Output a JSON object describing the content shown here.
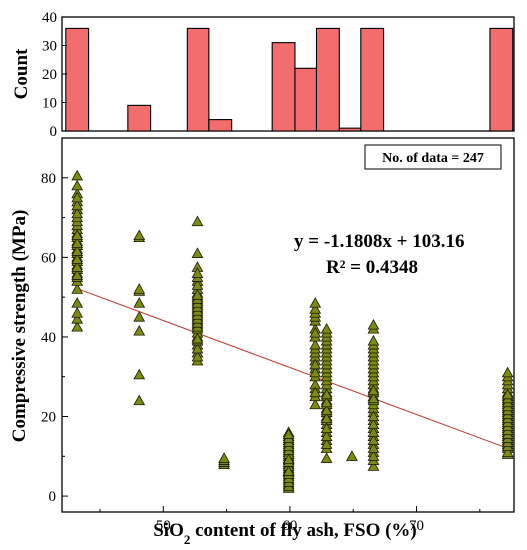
{
  "chart_data": [
    {
      "type": "bar",
      "panel": "top-histogram",
      "ylabel": "Count",
      "ylim": [
        0,
        40
      ],
      "yticks": [
        0,
        10,
        20,
        30,
        40
      ],
      "bins": [
        {
          "from": 42.3,
          "to": 44.1,
          "count": 36
        },
        {
          "from": 47.2,
          "to": 49.0,
          "count": 9
        },
        {
          "from": 51.9,
          "to": 53.6,
          "count": 36
        },
        {
          "from": 53.6,
          "to": 55.4,
          "count": 4
        },
        {
          "from": 58.6,
          "to": 60.4,
          "count": 31
        },
        {
          "from": 60.4,
          "to": 62.1,
          "count": 22
        },
        {
          "from": 62.1,
          "to": 63.9,
          "count": 36
        },
        {
          "from": 63.9,
          "to": 65.6,
          "count": 1
        },
        {
          "from": 65.6,
          "to": 67.4,
          "count": 36
        },
        {
          "from": 75.8,
          "to": 77.6,
          "count": 36
        }
      ],
      "bar_color": "#f26d6d"
    },
    {
      "type": "scatter",
      "panel": "main-scatter",
      "xlabel": "SiO₂ content of fly ash, FSO (%)",
      "xlabel_main": "SiO",
      "xlabel_sub": "2",
      "xlabel_rest": " content of fly ash, FSO (%)",
      "ylabel": "Compressive strength (MPa)",
      "xlim": [
        42,
        77.7
      ],
      "ylim": [
        -4,
        90
      ],
      "xticks": [
        50,
        60,
        70
      ],
      "yticks": [
        0,
        20,
        40,
        60,
        80
      ],
      "marker": "triangle",
      "marker_color": "#7a8a12",
      "data_count_label": "No. of data = 247",
      "equation": "y = -1.1808x + 103.16",
      "r_squared": "R² = 0.4348",
      "trendline": {
        "slope": -1.1808,
        "intercept": 103.16,
        "x_range": [
          43,
          77.2
        ],
        "color": "#c0392b"
      },
      "x_groups": [
        {
          "x": 43.2,
          "y": [
            42.5,
            44.5,
            46,
            48.5,
            52,
            54,
            55,
            56,
            57,
            58,
            59,
            60,
            61,
            62,
            63,
            64,
            65,
            66,
            67,
            68,
            69,
            70,
            72,
            74,
            76,
            78,
            80.5,
            55.5,
            57.5,
            59.5,
            61.5,
            63.5,
            65.5,
            71,
            73,
            75
          ]
        },
        {
          "x": 48.1,
          "y": [
            24,
            30.5,
            41.5,
            45,
            48.5,
            51.5,
            52,
            65,
            65.5
          ]
        },
        {
          "x": 52.7,
          "y": [
            34,
            36,
            38,
            40,
            41,
            42,
            43,
            44,
            45,
            46,
            47,
            48,
            49,
            50,
            51,
            52,
            54,
            57.5,
            61,
            69,
            35,
            37,
            39,
            39.5,
            42.5,
            43.5,
            44.5,
            45.5,
            46.5,
            47.5,
            48.5,
            49.5,
            50.5,
            53,
            55,
            56
          ]
        },
        {
          "x": 54.8,
          "y": [
            8,
            8.5,
            9,
            9.5
          ]
        },
        {
          "x": 59.9,
          "y": [
            2,
            3,
            4,
            5,
            6,
            7,
            8,
            9,
            10,
            11,
            12,
            13,
            14,
            15,
            16,
            2.5,
            3.5,
            4.5,
            5.5,
            6.5,
            7.5,
            8.5,
            9.5,
            10.5,
            11.5,
            12.5,
            13.5,
            14.5,
            15.5,
            6.2,
            9.2
          ]
        },
        {
          "x": 62.0,
          "y": [
            23,
            25,
            27,
            28,
            30,
            32,
            34,
            35,
            36,
            37,
            38,
            40,
            42,
            44,
            45,
            46,
            47,
            48.5,
            26,
            31,
            33,
            41
          ]
        },
        {
          "x": 62.9,
          "y": [
            9.5,
            12,
            14,
            16,
            18,
            19,
            20,
            21,
            22,
            23,
            24,
            25,
            26,
            27,
            28,
            29,
            30,
            31,
            32,
            33,
            34,
            35,
            36,
            37,
            38,
            39,
            40,
            41,
            42,
            13,
            15,
            17,
            19.5,
            21.5,
            23.5,
            25.5
          ]
        },
        {
          "x": 64.9,
          "y": [
            10
          ]
        },
        {
          "x": 66.6,
          "y": [
            7.5,
            9,
            11,
            13,
            15,
            17,
            19,
            21,
            22,
            23,
            24,
            25,
            26,
            27,
            28,
            29,
            30,
            31,
            32,
            33,
            34,
            35,
            36,
            37,
            38,
            39,
            42,
            43,
            10,
            12,
            14,
            16,
            18,
            20,
            24.5,
            26.5
          ]
        },
        {
          "x": 77.2,
          "y": [
            10.5,
            12,
            13,
            14,
            15,
            16,
            17,
            18,
            19,
            20,
            21,
            22,
            23,
            24,
            25,
            26,
            27,
            28,
            29,
            30,
            31,
            11,
            12.5,
            13.5,
            14.5,
            15.5,
            16.5,
            17.5,
            18.5,
            19.5,
            20.5,
            21.5,
            22.5,
            23.5,
            24.5,
            25.5
          ]
        }
      ]
    }
  ]
}
